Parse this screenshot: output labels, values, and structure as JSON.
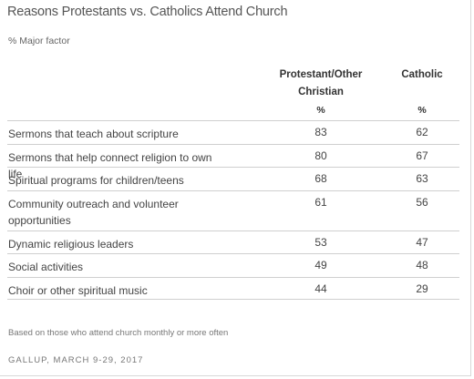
{
  "chart_data": {
    "type": "table",
    "title": "Reasons Protestants vs. Catholics Attend Church",
    "subtitle": "% Major factor",
    "columns": [
      "Protestant/Other Christian",
      "Catholic"
    ],
    "units_label": "%",
    "rows": [
      {
        "label": "Sermons that teach about scripture",
        "values": [
          83,
          62
        ]
      },
      {
        "label": "Sermons that help connect religion to own life",
        "values": [
          80,
          67
        ]
      },
      {
        "label": "Spiritual programs for children/teens",
        "values": [
          68,
          63
        ]
      },
      {
        "label": "Community outreach and volunteer opportunities",
        "values": [
          61,
          56
        ]
      },
      {
        "label": "Dynamic religious leaders",
        "values": [
          53,
          47
        ]
      },
      {
        "label": "Social activities",
        "values": [
          49,
          48
        ]
      },
      {
        "label": "Choir or other spiritual music",
        "values": [
          44,
          29
        ]
      }
    ],
    "note": "Based on those who attend church monthly or more often",
    "source": "GALLUP, MARCH 9-29, 2017"
  },
  "colors": {
    "text": "#444444",
    "rule": "#cfcfcf"
  }
}
